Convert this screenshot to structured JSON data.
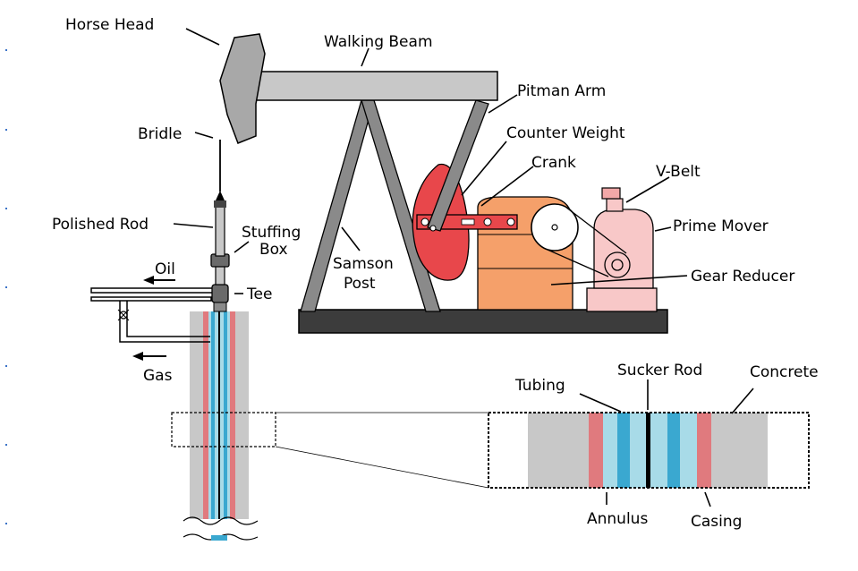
{
  "labels": {
    "horse_head": "Horse Head",
    "walking_beam": "Walking Beam",
    "pitman_arm": "Pitman Arm",
    "counter_weight": "Counter Weight",
    "crank": "Crank",
    "v_belt": "V-Belt",
    "prime_mover": "Prime Mover",
    "gear_reducer": "Gear Reducer",
    "bridle": "Bridle",
    "polished_rod": "Polished Rod",
    "stuffing_box_line1": "Stuffing",
    "stuffing_box_line2": "Box",
    "samson_post_line1": "Samson",
    "samson_post_line2": "Post",
    "oil": "Oil",
    "tee": "Tee",
    "gas": "Gas",
    "tubing": "Tubing",
    "sucker_rod": "Sucker Rod",
    "concrete": "Concrete",
    "annulus": "Annulus",
    "casing": "Casing"
  },
  "colors": {
    "beam_gray": "#c8c8c8",
    "head_gray": "#a8a8a8",
    "post_gray": "#8a8a8a",
    "base_dark": "#3c3c3c",
    "counter_weight_red": "#e8474b",
    "gear_orange": "#f5a06a",
    "prime_mover_pink": "#f8c8c8",
    "casing_red": "#e07a7e",
    "tubing_blue": "#3aa8d0",
    "annulus_light_blue": "#a8dbe8",
    "concrete_gray": "#c8c8c8"
  }
}
